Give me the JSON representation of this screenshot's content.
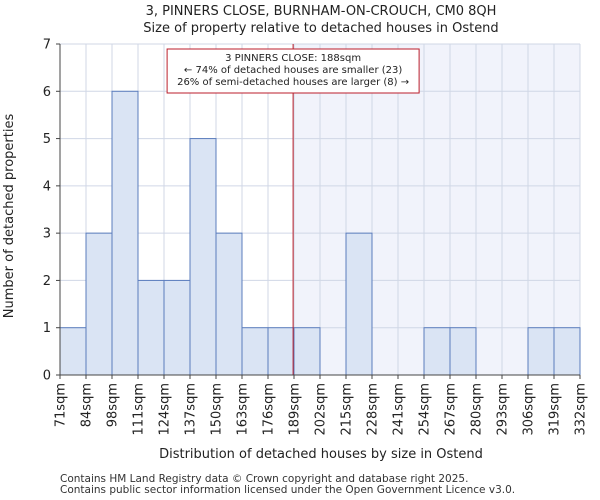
{
  "chart_data": {
    "type": "bar",
    "title": "3, PINNERS CLOSE, BURNHAM-ON-CROUCH, CM0 8QH",
    "subtitle": "Size of property relative to detached houses in Ostend",
    "xlabel": "Distribution of detached houses by size in Ostend",
    "ylabel": "Number of detached properties",
    "bin_edges": [
      71,
      84,
      98,
      111,
      124,
      137,
      150,
      163,
      176,
      189,
      202,
      215,
      228,
      241,
      254,
      267,
      280,
      293,
      306,
      319,
      332
    ],
    "tick_labels": [
      "71sqm",
      "84sqm",
      "98sqm",
      "111sqm",
      "124sqm",
      "137sqm",
      "150sqm",
      "163sqm",
      "176sqm",
      "189sqm",
      "202sqm",
      "215sqm",
      "228sqm",
      "241sqm",
      "254sqm",
      "267sqm",
      "280sqm",
      "293sqm",
      "306sqm",
      "319sqm",
      "332sqm"
    ],
    "values": [
      1,
      3,
      6,
      2,
      2,
      5,
      3,
      1,
      1,
      1,
      0,
      3,
      0,
      0,
      1,
      1,
      0,
      0,
      1,
      1
    ],
    "ylim": [
      0,
      7
    ],
    "yticks": [
      0,
      1,
      2,
      3,
      4,
      5,
      6,
      7
    ],
    "marker_value": 188,
    "grid": true,
    "annotation": {
      "line1": "3 PINNERS CLOSE: 188sqm",
      "line2": "← 74% of detached houses are smaller (23)",
      "line3": "26% of semi-detached houses are larger (8) →"
    },
    "colors": {
      "bar_fill": "#dae4f4",
      "bar_stroke": "#5b7dbd",
      "marker": "#bb1e2b",
      "right_shade": "#f1f3fb",
      "grid": "#d0d7e6"
    }
  },
  "footer": {
    "line1": "Contains HM Land Registry data © Crown copyright and database right 2025.",
    "line2": "Contains public sector information licensed under the Open Government Licence v3.0."
  }
}
